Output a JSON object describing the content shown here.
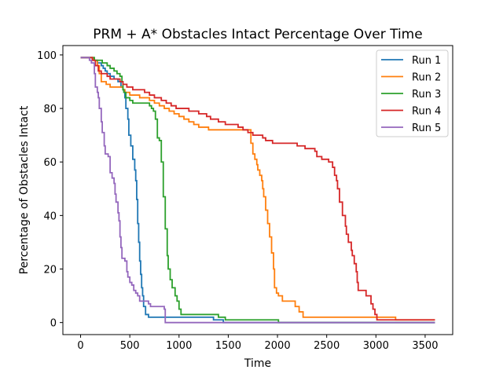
{
  "chart_data": {
    "type": "line",
    "title": "PRM + A* Obstacles Intact Percentage Over Time",
    "xlabel": "Time",
    "ylabel": "Percentage of Obstacles Intact",
    "xlim": [
      -180,
      3780
    ],
    "ylim": [
      -4.5,
      103.5
    ],
    "xticks": [
      0,
      500,
      1000,
      1500,
      2000,
      2500,
      3000,
      3500
    ],
    "yticks": [
      0,
      20,
      40,
      60,
      80,
      100
    ],
    "grid": false,
    "legend_position": "top-right",
    "series": [
      {
        "name": "Run 1",
        "color": "#1f77b4",
        "points": [
          [
            0,
            99
          ],
          [
            120,
            98
          ],
          [
            170,
            97
          ],
          [
            210,
            96
          ],
          [
            230,
            95
          ],
          [
            250,
            94
          ],
          [
            270,
            93
          ],
          [
            300,
            92
          ],
          [
            340,
            91
          ],
          [
            380,
            90
          ],
          [
            410,
            88
          ],
          [
            430,
            87
          ],
          [
            440,
            86
          ],
          [
            450,
            84
          ],
          [
            460,
            80
          ],
          [
            480,
            76
          ],
          [
            490,
            70
          ],
          [
            510,
            66
          ],
          [
            530,
            61
          ],
          [
            550,
            57
          ],
          [
            560,
            53
          ],
          [
            570,
            46
          ],
          [
            580,
            37
          ],
          [
            590,
            30
          ],
          [
            600,
            23
          ],
          [
            610,
            18
          ],
          [
            620,
            13
          ],
          [
            630,
            10
          ],
          [
            640,
            6
          ],
          [
            660,
            3
          ],
          [
            690,
            2
          ],
          [
            1350,
            1
          ],
          [
            1450,
            0
          ],
          [
            3600,
            0
          ]
        ]
      },
      {
        "name": "Run 2",
        "color": "#ff7f0e",
        "points": [
          [
            0,
            99
          ],
          [
            130,
            98
          ],
          [
            170,
            96
          ],
          [
            190,
            93
          ],
          [
            210,
            90
          ],
          [
            260,
            89
          ],
          [
            300,
            88
          ],
          [
            400,
            88
          ],
          [
            430,
            87
          ],
          [
            450,
            86
          ],
          [
            500,
            85
          ],
          [
            600,
            84
          ],
          [
            700,
            83
          ],
          [
            750,
            82
          ],
          [
            800,
            81
          ],
          [
            850,
            80
          ],
          [
            900,
            79
          ],
          [
            950,
            78
          ],
          [
            1000,
            77
          ],
          [
            1050,
            76
          ],
          [
            1100,
            75
          ],
          [
            1150,
            74
          ],
          [
            1200,
            73
          ],
          [
            1300,
            72
          ],
          [
            1700,
            72
          ],
          [
            1730,
            67
          ],
          [
            1750,
            63
          ],
          [
            1770,
            61
          ],
          [
            1790,
            59
          ],
          [
            1800,
            57
          ],
          [
            1820,
            55
          ],
          [
            1840,
            53
          ],
          [
            1850,
            50
          ],
          [
            1860,
            47
          ],
          [
            1880,
            42
          ],
          [
            1900,
            37
          ],
          [
            1920,
            32
          ],
          [
            1940,
            26
          ],
          [
            1960,
            20
          ],
          [
            1970,
            13
          ],
          [
            1990,
            11
          ],
          [
            2010,
            10
          ],
          [
            2050,
            8
          ],
          [
            2180,
            6
          ],
          [
            2220,
            4
          ],
          [
            2260,
            2
          ],
          [
            3200,
            1
          ],
          [
            3600,
            1
          ]
        ]
      },
      {
        "name": "Run 3",
        "color": "#2ca02c",
        "points": [
          [
            0,
            99
          ],
          [
            140,
            98
          ],
          [
            220,
            97
          ],
          [
            270,
            96
          ],
          [
            300,
            95
          ],
          [
            340,
            94
          ],
          [
            370,
            93
          ],
          [
            400,
            92
          ],
          [
            420,
            90
          ],
          [
            430,
            87
          ],
          [
            440,
            86
          ],
          [
            460,
            84
          ],
          [
            500,
            83
          ],
          [
            530,
            82
          ],
          [
            700,
            81
          ],
          [
            720,
            80
          ],
          [
            740,
            79
          ],
          [
            760,
            76
          ],
          [
            780,
            69
          ],
          [
            800,
            68
          ],
          [
            820,
            60
          ],
          [
            840,
            47
          ],
          [
            860,
            35
          ],
          [
            880,
            25
          ],
          [
            890,
            20
          ],
          [
            910,
            16
          ],
          [
            930,
            13
          ],
          [
            960,
            10
          ],
          [
            980,
            8
          ],
          [
            1000,
            5
          ],
          [
            1020,
            3
          ],
          [
            1400,
            2
          ],
          [
            1470,
            1
          ],
          [
            2000,
            1
          ],
          [
            2010,
            0
          ],
          [
            3600,
            0
          ]
        ]
      },
      {
        "name": "Run 4",
        "color": "#d62728",
        "points": [
          [
            0,
            99
          ],
          [
            120,
            98
          ],
          [
            150,
            96
          ],
          [
            180,
            94
          ],
          [
            210,
            93
          ],
          [
            270,
            92
          ],
          [
            300,
            91
          ],
          [
            400,
            90
          ],
          [
            430,
            89
          ],
          [
            470,
            88
          ],
          [
            530,
            87
          ],
          [
            650,
            86
          ],
          [
            700,
            85
          ],
          [
            750,
            84
          ],
          [
            820,
            83
          ],
          [
            870,
            82
          ],
          [
            920,
            81
          ],
          [
            970,
            80
          ],
          [
            1100,
            79
          ],
          [
            1200,
            78
          ],
          [
            1280,
            77
          ],
          [
            1320,
            76
          ],
          [
            1400,
            75
          ],
          [
            1470,
            74
          ],
          [
            1600,
            73
          ],
          [
            1650,
            72
          ],
          [
            1700,
            71
          ],
          [
            1750,
            70
          ],
          [
            1850,
            69
          ],
          [
            1880,
            68
          ],
          [
            1950,
            67
          ],
          [
            2200,
            66
          ],
          [
            2280,
            65
          ],
          [
            2380,
            64
          ],
          [
            2400,
            62
          ],
          [
            2450,
            61
          ],
          [
            2520,
            60
          ],
          [
            2560,
            58
          ],
          [
            2580,
            55
          ],
          [
            2600,
            53
          ],
          [
            2610,
            50
          ],
          [
            2630,
            45
          ],
          [
            2660,
            40
          ],
          [
            2690,
            36
          ],
          [
            2700,
            33
          ],
          [
            2720,
            30
          ],
          [
            2750,
            27
          ],
          [
            2760,
            25
          ],
          [
            2780,
            22
          ],
          [
            2800,
            19
          ],
          [
            2810,
            15
          ],
          [
            2820,
            12
          ],
          [
            2900,
            10
          ],
          [
            2950,
            7
          ],
          [
            2970,
            5
          ],
          [
            2990,
            3
          ],
          [
            3010,
            1
          ],
          [
            3600,
            1
          ]
        ]
      },
      {
        "name": "Run 5",
        "color": "#9467bd",
        "points": [
          [
            0,
            99
          ],
          [
            90,
            98
          ],
          [
            110,
            97
          ],
          [
            140,
            93
          ],
          [
            150,
            88
          ],
          [
            170,
            86
          ],
          [
            180,
            84
          ],
          [
            190,
            80
          ],
          [
            210,
            75
          ],
          [
            220,
            71
          ],
          [
            240,
            66
          ],
          [
            250,
            63
          ],
          [
            280,
            62
          ],
          [
            300,
            56
          ],
          [
            320,
            54
          ],
          [
            340,
            52
          ],
          [
            350,
            48
          ],
          [
            360,
            45
          ],
          [
            380,
            41
          ],
          [
            390,
            38
          ],
          [
            400,
            32
          ],
          [
            410,
            28
          ],
          [
            420,
            24
          ],
          [
            450,
            23
          ],
          [
            470,
            19
          ],
          [
            480,
            17
          ],
          [
            500,
            15
          ],
          [
            520,
            14
          ],
          [
            540,
            12
          ],
          [
            560,
            11
          ],
          [
            580,
            10
          ],
          [
            600,
            8
          ],
          [
            690,
            7
          ],
          [
            710,
            6
          ],
          [
            850,
            5
          ],
          [
            860,
            0
          ],
          [
            3600,
            0
          ]
        ]
      }
    ]
  }
}
